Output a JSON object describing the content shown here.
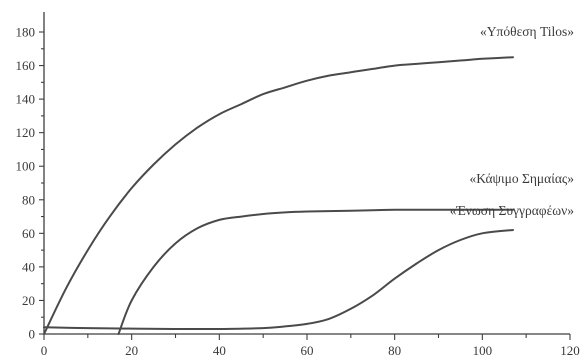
{
  "chart_data": {
    "type": "line",
    "title": "",
    "xlabel": "",
    "ylabel": "",
    "xlim": [
      0,
      120
    ],
    "ylim": [
      0,
      190
    ],
    "xticks": [
      0,
      20,
      40,
      60,
      80,
      100,
      120
    ],
    "yticks": [
      0,
      20,
      40,
      60,
      80,
      100,
      120,
      140,
      160,
      180
    ],
    "grid": false,
    "legend": "none",
    "series": [
      {
        "name": "«Υπόθεση Tilos»",
        "color": "#4a4a4a",
        "x": [
          0,
          5,
          10,
          15,
          20,
          25,
          30,
          35,
          40,
          45,
          50,
          55,
          60,
          65,
          70,
          75,
          80,
          85,
          90,
          95,
          100,
          107
        ],
        "y": [
          0,
          27,
          50,
          70,
          87,
          101,
          113,
          123,
          131,
          137,
          143,
          147,
          151,
          154,
          156,
          158,
          160,
          161,
          162,
          163,
          164,
          165
        ]
      },
      {
        "name": "«Κάψιμο Σημαίας»",
        "color": "#4a4a4a",
        "x": [
          17,
          20,
          25,
          30,
          35,
          40,
          45,
          50,
          55,
          60,
          70,
          80,
          90,
          100,
          107
        ],
        "y": [
          0,
          20,
          40,
          54,
          63,
          68,
          70,
          71.5,
          72.5,
          73,
          73.5,
          74,
          74,
          74,
          74
        ]
      },
      {
        "name": "«Ένωση Συγγραφέων»",
        "color": "#4a4a4a",
        "x": [
          0,
          10,
          20,
          30,
          40,
          50,
          55,
          60,
          65,
          70,
          75,
          80,
          85,
          90,
          95,
          100,
          107
        ],
        "y": [
          4,
          3.5,
          3.2,
          3,
          3,
          3.5,
          4.5,
          6,
          9,
          15,
          23,
          33,
          42,
          50,
          56,
          60,
          62
        ]
      }
    ]
  }
}
